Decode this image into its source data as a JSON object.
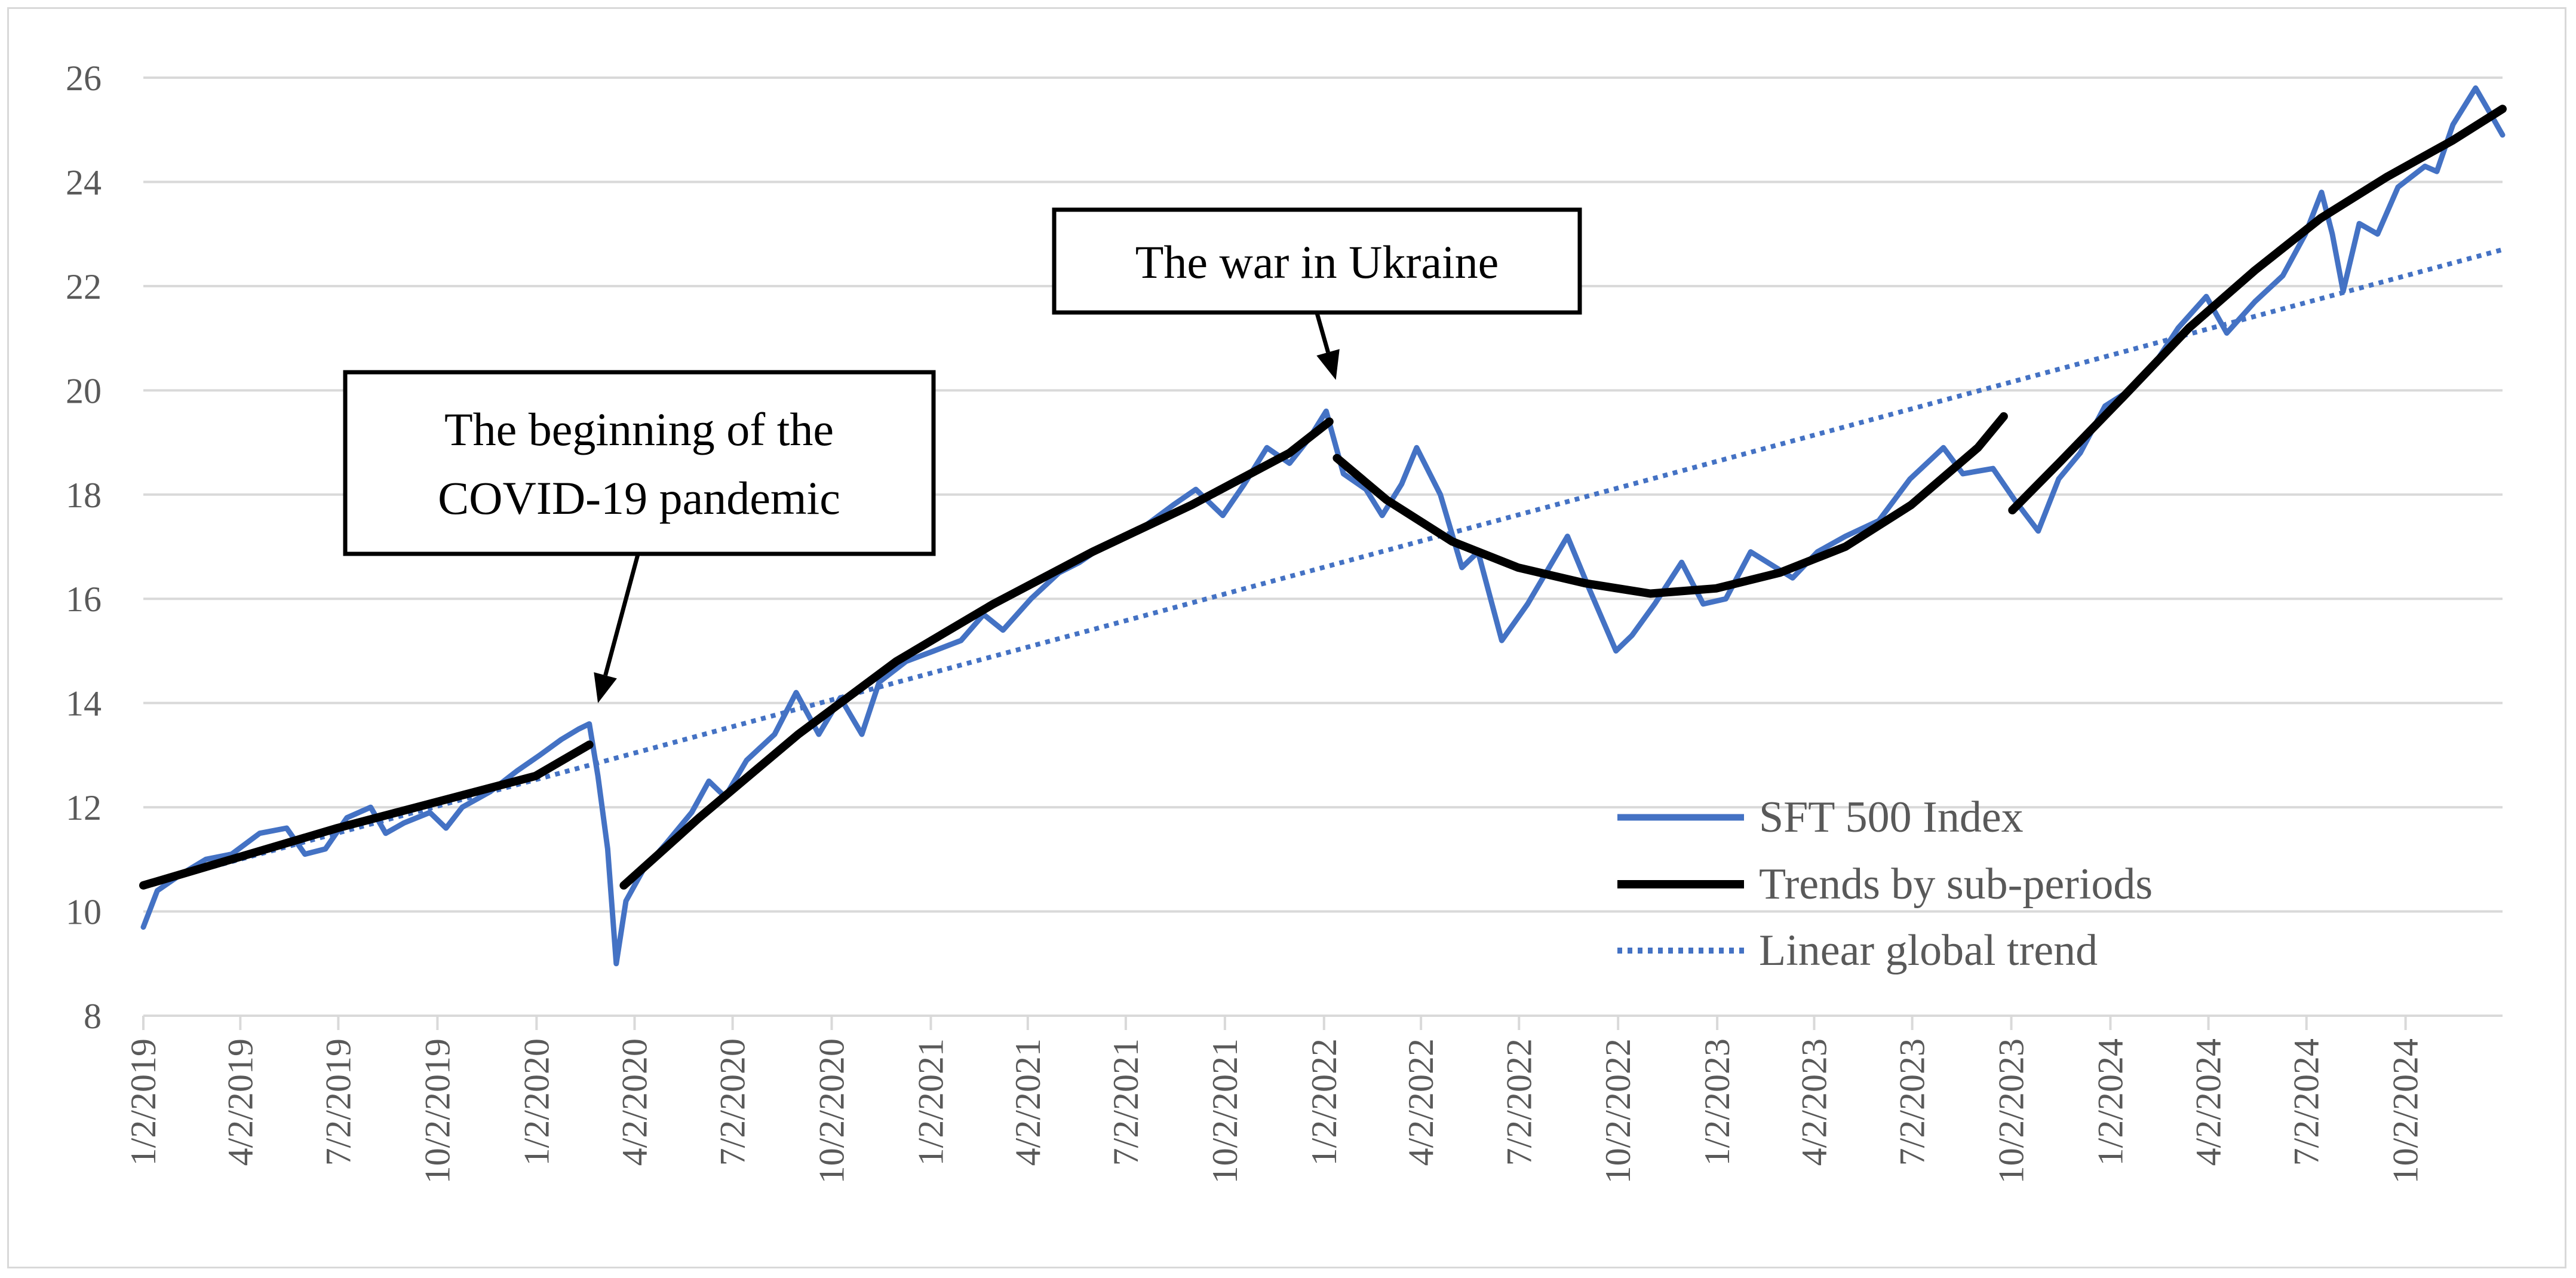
{
  "chart_data": {
    "type": "line",
    "title": "",
    "xlabel": "",
    "ylabel": "",
    "ylim": [
      8,
      26
    ],
    "yticks": [
      8,
      10,
      12,
      14,
      16,
      18,
      20,
      22,
      24,
      26
    ],
    "x_range": [
      "2019-01-02",
      "2024-12-31"
    ],
    "x_tick_labels": [
      "1/2/2019",
      "4/2/2019",
      "7/2/2019",
      "10/2/2019",
      "1/2/2020",
      "4/2/2020",
      "7/2/2020",
      "10/2/2020",
      "1/2/2021",
      "4/2/2021",
      "7/2/2021",
      "10/2/2021",
      "1/2/2022",
      "4/2/2022",
      "7/2/2022",
      "10/2/2022",
      "1/2/2023",
      "4/2/2023",
      "7/2/2023",
      "10/2/2023",
      "1/2/2024",
      "4/2/2024",
      "7/2/2024",
      "10/2/2024"
    ],
    "grid": "horizontal",
    "legend_position": "lower-right",
    "series": [
      {
        "name": "SFT 500 Index",
        "style": "solid",
        "color": "#4472C4",
        "points": [
          [
            "2019-01-02",
            9.7
          ],
          [
            "2019-01-15",
            10.4
          ],
          [
            "2019-02-05",
            10.7
          ],
          [
            "2019-03-01",
            11.0
          ],
          [
            "2019-03-25",
            11.1
          ],
          [
            "2019-04-20",
            11.5
          ],
          [
            "2019-05-15",
            11.6
          ],
          [
            "2019-06-01",
            11.1
          ],
          [
            "2019-06-20",
            11.2
          ],
          [
            "2019-07-10",
            11.8
          ],
          [
            "2019-08-01",
            12.0
          ],
          [
            "2019-08-15",
            11.5
          ],
          [
            "2019-09-01",
            11.7
          ],
          [
            "2019-09-25",
            11.9
          ],
          [
            "2019-10-10",
            11.6
          ],
          [
            "2019-10-25",
            12.0
          ],
          [
            "2019-11-20",
            12.3
          ],
          [
            "2019-12-15",
            12.7
          ],
          [
            "2020-01-05",
            13.0
          ],
          [
            "2020-01-25",
            13.3
          ],
          [
            "2020-02-10",
            13.5
          ],
          [
            "2020-02-20",
            13.6
          ],
          [
            "2020-02-28",
            12.6
          ],
          [
            "2020-03-08",
            11.2
          ],
          [
            "2020-03-16",
            9.0
          ],
          [
            "2020-03-25",
            10.2
          ],
          [
            "2020-04-10",
            10.8
          ],
          [
            "2020-05-01",
            11.3
          ],
          [
            "2020-05-25",
            11.9
          ],
          [
            "2020-06-10",
            12.5
          ],
          [
            "2020-06-25",
            12.2
          ],
          [
            "2020-07-15",
            12.9
          ],
          [
            "2020-08-10",
            13.4
          ],
          [
            "2020-08-30",
            14.2
          ],
          [
            "2020-09-20",
            13.4
          ],
          [
            "2020-10-10",
            14.1
          ],
          [
            "2020-10-30",
            13.4
          ],
          [
            "2020-11-15",
            14.4
          ],
          [
            "2020-12-10",
            14.8
          ],
          [
            "2021-01-05",
            15.0
          ],
          [
            "2021-01-30",
            15.2
          ],
          [
            "2021-02-20",
            15.7
          ],
          [
            "2021-03-10",
            15.4
          ],
          [
            "2021-04-05",
            16.0
          ],
          [
            "2021-05-01",
            16.5
          ],
          [
            "2021-05-20",
            16.7
          ],
          [
            "2021-06-10",
            17.0
          ],
          [
            "2021-06-30",
            17.2
          ],
          [
            "2021-07-20",
            17.4
          ],
          [
            "2021-08-15",
            17.8
          ],
          [
            "2021-09-05",
            18.1
          ],
          [
            "2021-09-30",
            17.6
          ],
          [
            "2021-10-20",
            18.2
          ],
          [
            "2021-11-10",
            18.9
          ],
          [
            "2021-12-01",
            18.6
          ],
          [
            "2021-12-20",
            19.1
          ],
          [
            "2022-01-04",
            19.6
          ],
          [
            "2022-01-20",
            18.4
          ],
          [
            "2022-02-10",
            18.1
          ],
          [
            "2022-02-25",
            17.6
          ],
          [
            "2022-03-15",
            18.2
          ],
          [
            "2022-03-29",
            18.9
          ],
          [
            "2022-04-20",
            18.0
          ],
          [
            "2022-05-10",
            16.6
          ],
          [
            "2022-05-25",
            16.9
          ],
          [
            "2022-06-16",
            15.2
          ],
          [
            "2022-07-10",
            15.9
          ],
          [
            "2022-08-16",
            17.2
          ],
          [
            "2022-09-05",
            16.2
          ],
          [
            "2022-09-30",
            15.0
          ],
          [
            "2022-10-15",
            15.3
          ],
          [
            "2022-11-05",
            15.9
          ],
          [
            "2022-11-30",
            16.7
          ],
          [
            "2022-12-20",
            15.9
          ],
          [
            "2023-01-10",
            16.0
          ],
          [
            "2023-02-02",
            16.9
          ],
          [
            "2023-03-13",
            16.4
          ],
          [
            "2023-04-05",
            16.9
          ],
          [
            "2023-05-01",
            17.2
          ],
          [
            "2023-06-01",
            17.5
          ],
          [
            "2023-06-30",
            18.3
          ],
          [
            "2023-07-31",
            18.9
          ],
          [
            "2023-08-18",
            18.4
          ],
          [
            "2023-09-15",
            18.5
          ],
          [
            "2023-10-05",
            17.9
          ],
          [
            "2023-10-27",
            17.3
          ],
          [
            "2023-11-15",
            18.3
          ],
          [
            "2023-12-05",
            18.8
          ],
          [
            "2023-12-28",
            19.7
          ],
          [
            "2024-01-20",
            20.0
          ],
          [
            "2024-02-15",
            20.6
          ],
          [
            "2024-03-05",
            21.2
          ],
          [
            "2024-03-31",
            21.8
          ],
          [
            "2024-04-19",
            21.1
          ],
          [
            "2024-05-15",
            21.7
          ],
          [
            "2024-06-10",
            22.2
          ],
          [
            "2024-07-01",
            23.0
          ],
          [
            "2024-07-16",
            23.8
          ],
          [
            "2024-07-26",
            23.0
          ],
          [
            "2024-08-05",
            21.9
          ],
          [
            "2024-08-20",
            23.2
          ],
          [
            "2024-09-06",
            23.0
          ],
          [
            "2024-09-25",
            23.9
          ],
          [
            "2024-10-20",
            24.3
          ],
          [
            "2024-10-31",
            24.2
          ],
          [
            "2024-11-15",
            25.1
          ],
          [
            "2024-12-06",
            25.8
          ],
          [
            "2024-12-20",
            25.3
          ],
          [
            "2024-12-31",
            24.9
          ]
        ]
      },
      {
        "name": "Trends by sub-periods",
        "style": "solid",
        "color": "#000000",
        "segments": [
          [
            [
              "2019-01-02",
              10.5
            ],
            [
              "2019-07-01",
              11.6
            ],
            [
              "2020-01-01",
              12.6
            ],
            [
              "2020-02-20",
              13.2
            ]
          ],
          [
            [
              "2020-03-23",
              10.5
            ],
            [
              "2020-06-01",
              11.8
            ],
            [
              "2020-09-01",
              13.4
            ],
            [
              "2020-12-01",
              14.8
            ],
            [
              "2021-03-01",
              15.9
            ],
            [
              "2021-06-01",
              16.9
            ],
            [
              "2021-09-01",
              17.8
            ],
            [
              "2021-12-01",
              18.8
            ],
            [
              "2022-01-07",
              19.4
            ]
          ],
          [
            [
              "2022-01-14",
              18.7
            ],
            [
              "2022-03-01",
              17.9
            ],
            [
              "2022-05-01",
              17.1
            ],
            [
              "2022-07-01",
              16.6
            ],
            [
              "2022-09-01",
              16.3
            ],
            [
              "2022-11-01",
              16.1
            ],
            [
              "2023-01-01",
              16.2
            ],
            [
              "2023-03-01",
              16.5
            ],
            [
              "2023-05-01",
              17.0
            ],
            [
              "2023-07-01",
              17.8
            ],
            [
              "2023-09-01",
              18.9
            ],
            [
              "2023-09-25",
              19.5
            ]
          ],
          [
            [
              "2023-10-03",
              17.7
            ],
            [
              "2023-11-15",
              18.6
            ],
            [
              "2024-01-15",
              19.9
            ],
            [
              "2024-03-15",
              21.2
            ],
            [
              "2024-05-15",
              22.3
            ],
            [
              "2024-07-15",
              23.3
            ],
            [
              "2024-09-15",
              24.1
            ],
            [
              "2024-11-15",
              24.8
            ],
            [
              "2024-12-31",
              25.4
            ]
          ]
        ]
      },
      {
        "name": "Linear global trend",
        "style": "dotted",
        "color": "#4472C4",
        "points": [
          [
            "2019-01-02",
            10.5
          ],
          [
            "2024-12-31",
            22.7
          ]
        ]
      }
    ],
    "annotations": [
      {
        "lines": [
          "The beginning of the",
          "COVID-19 pandemic"
        ],
        "points_to": [
          "2020-02-28",
          14.0
        ]
      },
      {
        "lines": [
          "The war in Ukraine"
        ],
        "points_to": [
          "2022-01-13",
          20.2
        ]
      }
    ]
  }
}
